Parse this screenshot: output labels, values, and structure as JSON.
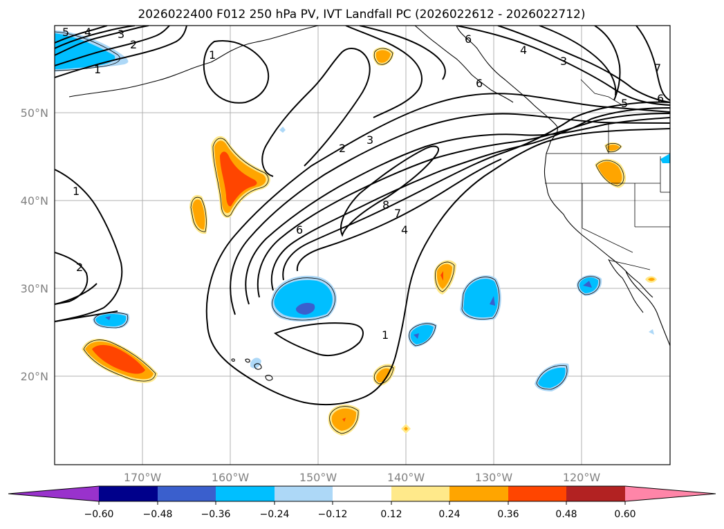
{
  "title": "2026022400 F012 250 hPa PV, IVT Landfall PC (2026022612 - 2026022712)",
  "colors": {
    "blue_dark": "#00008b",
    "blue_mid": "#3a5fcd",
    "blue_light": "#00bfff",
    "blue_pale": "#add8f7",
    "yellow": "#ffe98a",
    "orange": "#ffa500",
    "orange_red": "#ff4500",
    "red_dark": "#b22222",
    "pink": "#ff85a8",
    "purple": "#9932cc"
  },
  "map": {
    "lon_range": [
      -180,
      -110
    ],
    "lat_range": [
      10,
      60
    ],
    "lat_labels": [
      "50°N",
      "40°N",
      "30°N",
      "20°N"
    ],
    "lon_labels": [
      "170°W",
      "160°W",
      "150°W",
      "140°W",
      "130°W",
      "120°W"
    ]
  },
  "contour_labels": [
    "5",
    "4",
    "3",
    "2",
    "1",
    "1",
    "2",
    "3",
    "8",
    "7",
    "6",
    "4",
    "1",
    "1",
    "2",
    "6",
    "4",
    "3",
    "5",
    "6",
    "7",
    "6"
  ],
  "colorbar": {
    "ticks": [
      "−0.60",
      "−0.48",
      "−0.36",
      "−0.24",
      "−0.12",
      "0.12",
      "0.24",
      "0.36",
      "0.48",
      "0.60"
    ],
    "extend": "both"
  }
}
